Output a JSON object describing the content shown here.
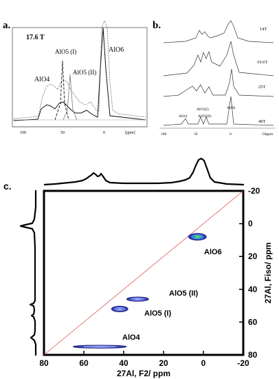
{
  "panels": {
    "a": {
      "letter": "a.",
      "field": "17.6 T",
      "labels": [
        "AlO4",
        "AlO5 (I)",
        "AlO5 (II)",
        "AlO6"
      ],
      "ticks": [
        "100",
        "50",
        "0"
      ],
      "unit": "[ppm]"
    },
    "b": {
      "letter": "b.",
      "fields": [
        "14T",
        "19.6T",
        "25T",
        "40T"
      ],
      "labels": [
        "AlO4",
        "AlO5(I)",
        "AlO5(II)",
        "AlO6"
      ],
      "ticks": [
        "100",
        "50",
        "0",
        "-50ppm"
      ]
    },
    "c": {
      "letter": "c.",
      "xlabel": "27Al, F2/ ppm",
      "ylabel": "27Al, Fiso/ ppm",
      "peak_labels": [
        "AlO6",
        "AlO5 (II)",
        "AlO5 (I)",
        "AlO4"
      ]
    }
  },
  "chart_data": [
    {
      "type": "line",
      "panel": "a",
      "xlim": [
        100,
        -10
      ],
      "peaks_ppm": [
        {
          "name": "AlO4",
          "x": 65
        },
        {
          "name": "AlO5 (I)",
          "x": 55
        },
        {
          "name": "AlO5 (II)",
          "x": 40
        },
        {
          "name": "AlO6",
          "x": 8
        }
      ]
    },
    {
      "type": "line",
      "panel": "b",
      "xlim": [
        100,
        -50
      ],
      "series": [
        {
          "name": "14T"
        },
        {
          "name": "19.6T"
        },
        {
          "name": "25T"
        },
        {
          "name": "40T"
        }
      ]
    },
    {
      "type": "scatter",
      "panel": "c",
      "xlim": [
        80,
        -20
      ],
      "ylim": [
        80,
        -20
      ],
      "xticks": [
        80,
        60,
        40,
        20,
        0,
        -20
      ],
      "yticks": [
        -20,
        0,
        20,
        40,
        60,
        80
      ],
      "diagonal": "x = y",
      "peaks": [
        {
          "name": "AlO6",
          "x": 3,
          "y": 8
        },
        {
          "name": "AlO5 (II)",
          "x": 33,
          "y": 46
        },
        {
          "name": "AlO5 (I)",
          "x": 42,
          "y": 52
        },
        {
          "name": "AlO4",
          "x": 52,
          "y": 75
        }
      ]
    }
  ]
}
